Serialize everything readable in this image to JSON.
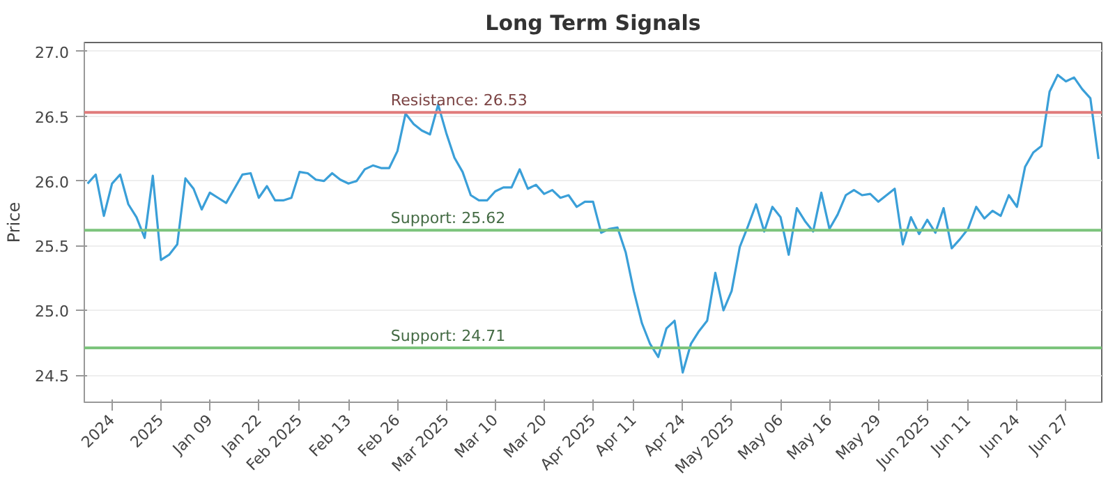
{
  "chart_data": {
    "type": "line",
    "title": "Long Term Signals",
    "ylabel": "Price",
    "categories": [
      null,
      null,
      null,
      "2024",
      null,
      null,
      null,
      null,
      null,
      "2025",
      null,
      null,
      null,
      null,
      null,
      "Jan 09",
      null,
      null,
      null,
      null,
      null,
      "Jan 22",
      null,
      null,
      null,
      null,
      "Feb 2025",
      null,
      null,
      null,
      null,
      null,
      "Feb 13",
      null,
      null,
      null,
      null,
      null,
      "Feb 26",
      null,
      null,
      null,
      null,
      null,
      "Mar 2025",
      null,
      null,
      null,
      null,
      null,
      "Mar 10",
      null,
      null,
      null,
      null,
      null,
      "Mar 20",
      null,
      null,
      null,
      null,
      null,
      "Apr 2025",
      null,
      null,
      null,
      null,
      "Apr 11",
      null,
      null,
      null,
      null,
      null,
      "Apr 24",
      null,
      null,
      null,
      null,
      null,
      "May 2025",
      null,
      null,
      null,
      null,
      null,
      "May 06",
      null,
      null,
      null,
      null,
      null,
      "May 16",
      null,
      null,
      null,
      null,
      null,
      "May 29",
      null,
      null,
      null,
      null,
      null,
      "Jun 2025",
      null,
      null,
      null,
      null,
      "Jun 11",
      null,
      null,
      null,
      null,
      null,
      "Jun 24",
      null,
      null,
      null,
      null,
      null,
      "Jun 27",
      null,
      null,
      null,
      null
    ],
    "series": [
      {
        "color": "#3a9fd8",
        "values": [
          25.98,
          26.05,
          25.73,
          25.98,
          26.05,
          25.82,
          25.72,
          25.56,
          26.04,
          25.39,
          25.43,
          25.51,
          26.02,
          25.94,
          25.78,
          25.91,
          25.87,
          25.83,
          25.94,
          26.05,
          26.06,
          25.87,
          25.96,
          25.85,
          25.85,
          25.87,
          26.07,
          26.06,
          26.01,
          26.0,
          26.06,
          26.01,
          25.98,
          26.0,
          26.09,
          26.12,
          26.1,
          26.1,
          26.23,
          26.52,
          26.44,
          26.39,
          26.36,
          26.59,
          26.37,
          26.18,
          26.07,
          25.89,
          25.85,
          25.85,
          25.92,
          25.95,
          25.95,
          26.09,
          25.94,
          25.97,
          25.9,
          25.93,
          25.87,
          25.89,
          25.8,
          25.84,
          25.84,
          25.6,
          25.63,
          25.64,
          25.45,
          25.15,
          24.9,
          24.74,
          24.64,
          24.86,
          24.92,
          24.52,
          24.74,
          24.84,
          24.92,
          25.29,
          25.0,
          25.15,
          25.49,
          25.65,
          25.82,
          25.61,
          25.8,
          25.72,
          25.43,
          25.79,
          25.69,
          25.61,
          25.91,
          25.63,
          25.74,
          25.89,
          25.93,
          25.89,
          25.9,
          25.84,
          25.89,
          25.94,
          25.51,
          25.72,
          25.59,
          25.7,
          25.6,
          25.79,
          25.48,
          25.55,
          25.63,
          25.8,
          25.71,
          25.77,
          25.73,
          25.89,
          25.8,
          26.11,
          26.22,
          26.27,
          26.69,
          26.82,
          26.77,
          26.8,
          26.71,
          26.64,
          26.17
        ]
      }
    ],
    "ylim": [
      24.29,
      27.07
    ],
    "yticks": [
      {
        "value": 24.5,
        "label": "24.5"
      },
      {
        "value": 25,
        "label": "25.0"
      },
      {
        "value": 25.5,
        "label": "25.5"
      },
      {
        "value": 26,
        "label": "26.0"
      },
      {
        "value": 26.5,
        "label": "26.5"
      },
      {
        "value": 27,
        "label": "27.0"
      }
    ],
    "grid": "y",
    "ref_lines": [
      {
        "axis": "y",
        "value": 26.53,
        "label": "Resistance: 26.53",
        "color": "#e07b7b"
      },
      {
        "axis": "y",
        "value": 25.62,
        "label": "Support: 25.62",
        "color": "#7cc47c"
      },
      {
        "axis": "y",
        "value": 24.71,
        "label": "Support: 24.71",
        "color": "#7cc47c"
      }
    ]
  }
}
